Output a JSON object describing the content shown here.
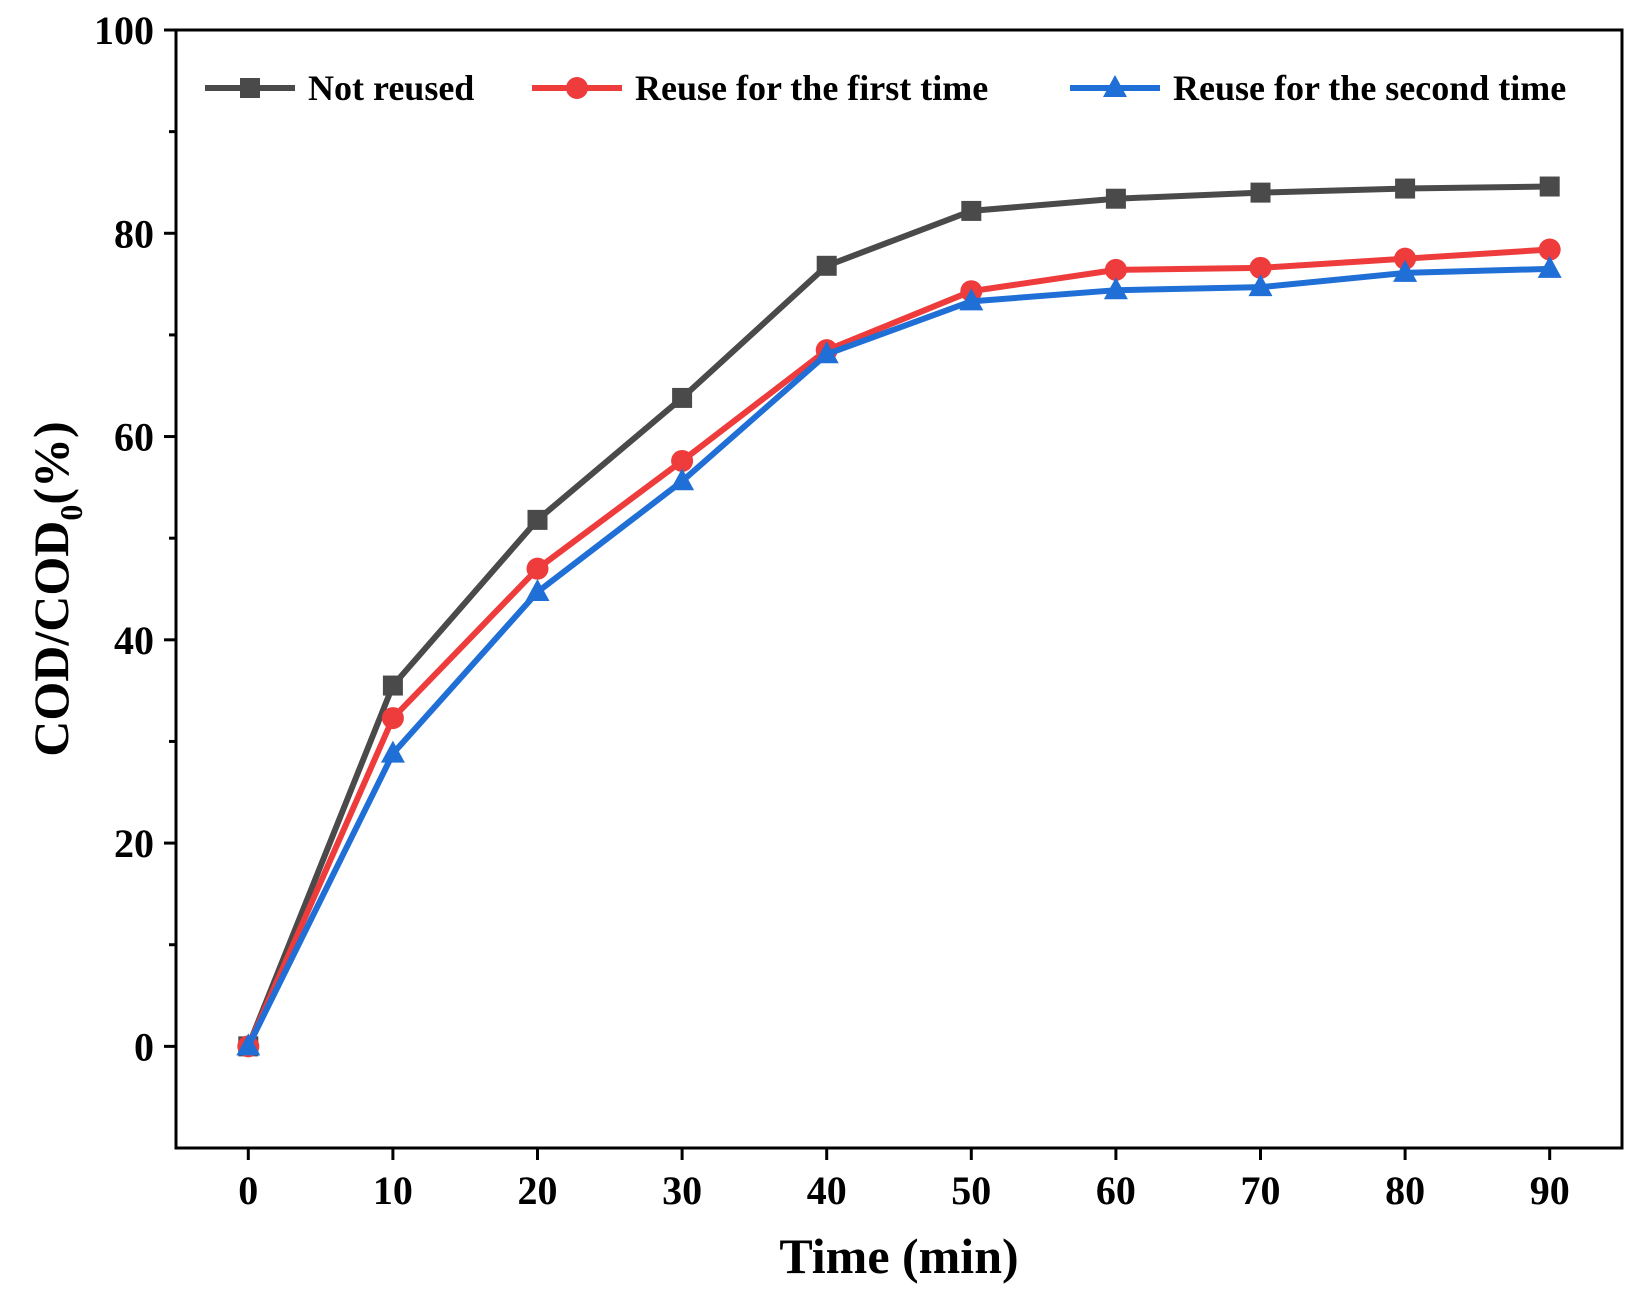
{
  "chart_data": {
    "type": "line",
    "title": "",
    "xlabel": "Time (min)",
    "ylabel_main": "COD/COD",
    "ylabel_sub": "0",
    "ylabel_suffix": "(%)",
    "x": [
      0,
      10,
      20,
      30,
      40,
      50,
      60,
      70,
      80,
      90
    ],
    "xlim": [
      -5,
      95
    ],
    "ylim": [
      -10,
      100
    ],
    "xticks": [
      0,
      10,
      20,
      30,
      40,
      50,
      60,
      70,
      80,
      90
    ],
    "yticks": [
      0,
      20,
      40,
      60,
      80,
      100
    ],
    "yminor": [
      10,
      30,
      50,
      70,
      90
    ],
    "xtick_labels": [
      "0",
      "10",
      "20",
      "30",
      "40",
      "50",
      "60",
      "70",
      "80",
      "90"
    ],
    "ytick_labels": [
      "0",
      "20",
      "40",
      "60",
      "80",
      "100"
    ],
    "grid": false,
    "legend_position": "top",
    "series": [
      {
        "name": "Not reused",
        "color": "#4a4a4a",
        "marker": "square",
        "values": [
          0,
          35.5,
          51.8,
          63.8,
          76.8,
          82.2,
          83.4,
          84.0,
          84.4,
          84.6
        ]
      },
      {
        "name": "Reuse for the first time",
        "color": "#ee3b3b",
        "marker": "circle",
        "values": [
          0,
          32.3,
          47.0,
          57.6,
          68.5,
          74.3,
          76.4,
          76.6,
          77.5,
          78.4
        ]
      },
      {
        "name": "Reuse for the second time",
        "color": "#1f6fd6",
        "marker": "triangle",
        "values": [
          0,
          28.8,
          44.7,
          55.6,
          68.1,
          73.3,
          74.4,
          74.7,
          76.1,
          76.5
        ]
      }
    ]
  }
}
